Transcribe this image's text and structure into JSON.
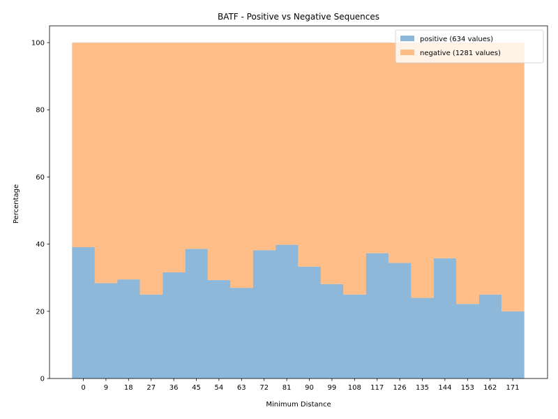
{
  "chart_data": {
    "type": "bar",
    "stacked": true,
    "title": "BATF - Positive vs Negative Sequences",
    "xlabel": "Minimum Distance",
    "ylabel": "Percentage",
    "categories": [
      "0",
      "9",
      "18",
      "27",
      "36",
      "45",
      "54",
      "63",
      "72",
      "81",
      "90",
      "99",
      "108",
      "117",
      "126",
      "135",
      "144",
      "153",
      "162",
      "171"
    ],
    "ylim": [
      0,
      105
    ],
    "yticks": [
      0,
      20,
      40,
      60,
      80,
      100
    ],
    "grid": false,
    "legend_position": "top-right",
    "series": [
      {
        "name": "positive (634 values)",
        "color": "#8db8d9",
        "values": [
          39.1,
          28.4,
          29.5,
          25.0,
          31.6,
          38.6,
          29.3,
          27.0,
          38.2,
          39.8,
          33.3,
          28.1,
          25.0,
          37.3,
          34.4,
          24.0,
          35.8,
          22.2,
          25.0,
          20.0
        ]
      },
      {
        "name": "negative (1281 values)",
        "color": "#ffbe88",
        "values": [
          60.9,
          71.6,
          70.5,
          75.0,
          68.4,
          61.4,
          70.7,
          73.0,
          61.8,
          60.2,
          66.7,
          71.9,
          75.0,
          62.7,
          65.6,
          76.0,
          64.2,
          77.8,
          75.0,
          80.0
        ]
      }
    ]
  }
}
